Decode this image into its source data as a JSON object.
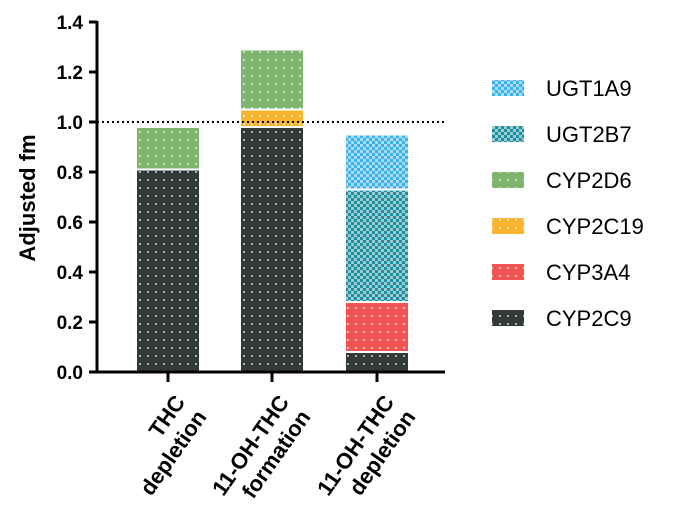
{
  "chart_data": {
    "type": "bar",
    "stacked": true,
    "ylabel": "Adjusted fm",
    "xlabel": "",
    "ylim": [
      0,
      1.4
    ],
    "yticks": [
      "0.0",
      "0.2",
      "0.4",
      "0.6",
      "0.8",
      "1.0",
      "1.2",
      "1.4"
    ],
    "reference_line": 1.0,
    "categories": [
      [
        "THC",
        "depletion"
      ],
      [
        "11-OH-THC",
        "formation"
      ],
      [
        "11-OH-THC",
        "depletion"
      ]
    ],
    "series": [
      {
        "name": "CYP2C9",
        "color": "#333a3a",
        "pattern": "dots",
        "values": [
          0.81,
          0.98,
          0.08
        ]
      },
      {
        "name": "CYP3A4",
        "color": "#f25454",
        "pattern": "dots",
        "values": [
          0.0,
          0.0,
          0.2
        ]
      },
      {
        "name": "CYP2C19",
        "color": "#f9b52f",
        "pattern": "dots",
        "values": [
          0.0,
          0.07,
          0.0
        ]
      },
      {
        "name": "CYP2D6",
        "color": "#7fb46e",
        "pattern": "dots",
        "values": [
          0.17,
          0.24,
          0.0
        ]
      },
      {
        "name": "UGT2B7",
        "color": "#1f8fa0",
        "pattern": "check",
        "values": [
          0.0,
          0.0,
          0.45
        ]
      },
      {
        "name": "UGT1A9",
        "color": "#3cb2e6",
        "pattern": "check",
        "values": [
          0.0,
          0.0,
          0.22
        ]
      }
    ],
    "legend_order": [
      "UGT1A9",
      "UGT2B7",
      "CYP2D6",
      "CYP2C19",
      "CYP3A4",
      "CYP2C9"
    ],
    "legend_position": "right",
    "grid": false
  }
}
